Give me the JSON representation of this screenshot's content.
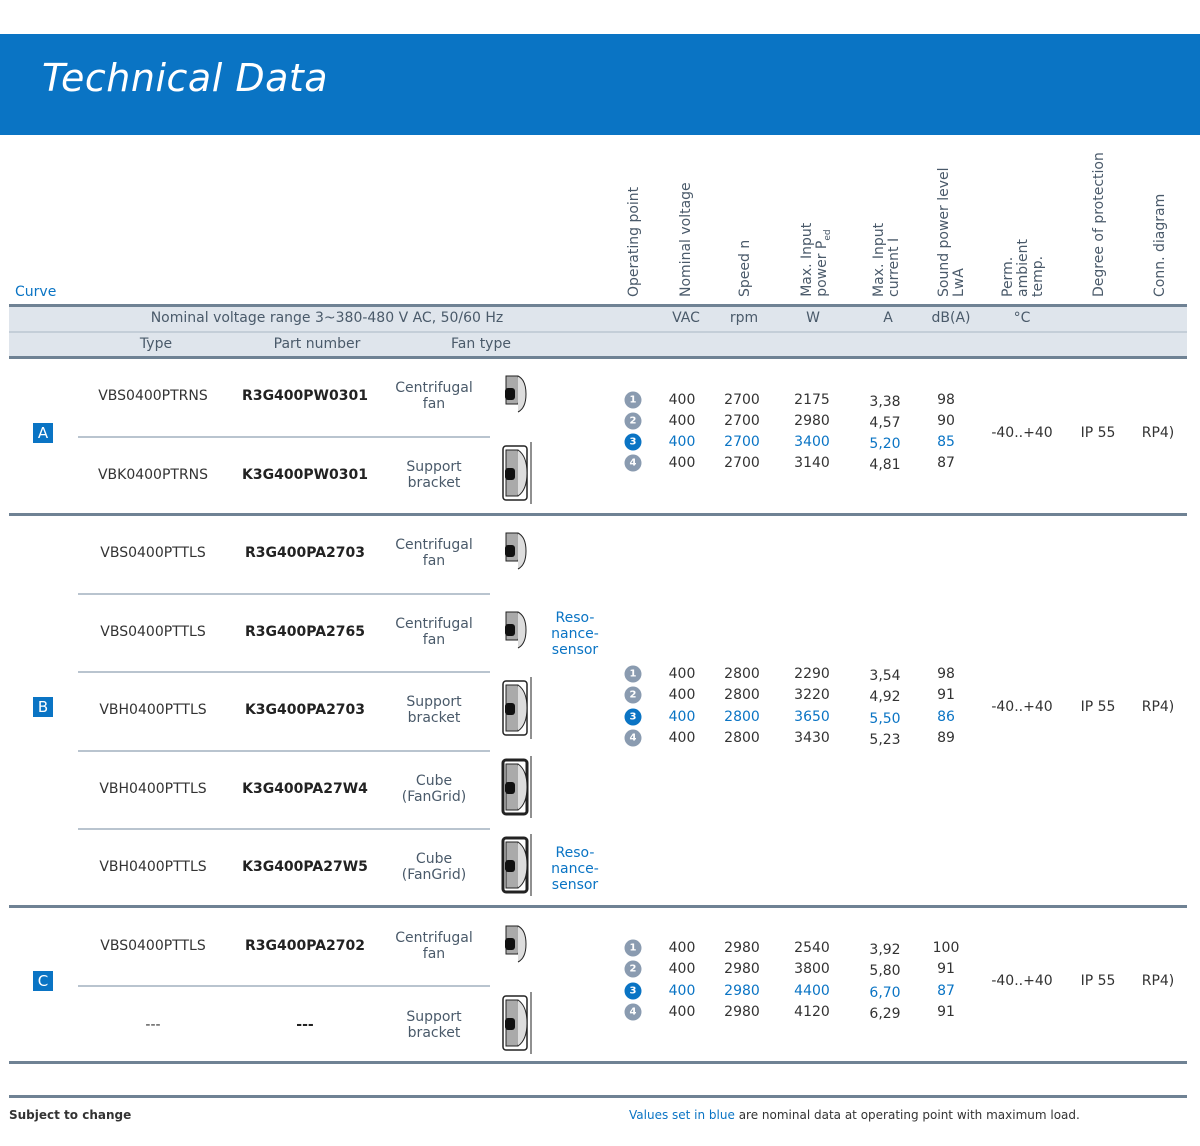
{
  "title": "Technical Data",
  "header": {
    "curve": "Curve",
    "rotated": [
      [
        "Operating point"
      ],
      [
        "Nominal voltage"
      ],
      [
        "Speed n"
      ],
      [
        "Max. Input",
        "power P_ed"
      ],
      [
        "Max. Input",
        "current I"
      ],
      [
        "Sound power level",
        "LwA"
      ],
      [
        "Perm.",
        "ambient",
        "temp."
      ],
      [
        "Degree of protection"
      ],
      [
        "Conn. diagram"
      ]
    ],
    "voltage_range": "Nominal voltage range 3~380-480 V AC, 50/60 Hz",
    "units": [
      "VAC",
      "rpm",
      "W",
      "A",
      "dB(A)",
      "°C"
    ],
    "type": "Type",
    "part_number": "Part number",
    "fan_type": "Fan type"
  },
  "sections": [
    {
      "label": "A",
      "rows": [
        {
          "type": "VBS0400PTRNS",
          "part": "R3G400PW0301",
          "fan": "Centrifugal fan",
          "icon": "fan",
          "resonance": ""
        },
        {
          "type": "VBK0400PTRNS",
          "part": "K3G400PW0301",
          "fan": "Support bracket",
          "icon": "bracket",
          "resonance": ""
        }
      ],
      "points": [
        [
          "1",
          "400",
          "2700",
          "2175",
          "3,38",
          "98"
        ],
        [
          "2",
          "400",
          "2700",
          "2980",
          "4,57",
          "90"
        ],
        [
          "3",
          "400",
          "2700",
          "3400",
          "5,20",
          "85"
        ],
        [
          "4",
          "400",
          "2700",
          "3140",
          "4,81",
          "87"
        ]
      ],
      "temp": "-40..+40",
      "ip": "IP 55",
      "conn": "RP4)"
    },
    {
      "label": "B",
      "rows": [
        {
          "type": "VBS0400PTTLS",
          "part": "R3G400PA2703",
          "fan": "Centrifugal fan",
          "icon": "fan",
          "resonance": ""
        },
        {
          "type": "VBS0400PTTLS",
          "part": "R3G400PA2765",
          "fan": "Centrifugal fan",
          "icon": "fan",
          "resonance": "Reso- nance- sensor"
        },
        {
          "type": "VBH0400PTTLS",
          "part": "K3G400PA2703",
          "fan": "Support bracket",
          "icon": "bracket",
          "resonance": ""
        },
        {
          "type": "VBH0400PTTLS",
          "part": "K3G400PA27W4",
          "fan": "Cube (FanGrid)",
          "icon": "cube",
          "resonance": ""
        },
        {
          "type": "VBH0400PTTLS",
          "part": "K3G400PA27W5",
          "fan": "Cube (FanGrid)",
          "icon": "cube",
          "resonance": "Reso- nance- sensor"
        }
      ],
      "points": [
        [
          "1",
          "400",
          "2800",
          "2290",
          "3,54",
          "98"
        ],
        [
          "2",
          "400",
          "2800",
          "3220",
          "4,92",
          "91"
        ],
        [
          "3",
          "400",
          "2800",
          "3650",
          "5,50",
          "86"
        ],
        [
          "4",
          "400",
          "2800",
          "3430",
          "5,23",
          "89"
        ]
      ],
      "temp": "-40..+40",
      "ip": "IP 55",
      "conn": "RP4)"
    },
    {
      "label": "C",
      "rows": [
        {
          "type": "VBS0400PTTLS",
          "part": "R3G400PA2702",
          "fan": "Centrifugal fan",
          "icon": "fan",
          "resonance": ""
        },
        {
          "type": "---",
          "part": "---",
          "fan": "Support bracket",
          "icon": "bracket",
          "resonance": ""
        }
      ],
      "points": [
        [
          "1",
          "400",
          "2980",
          "2540",
          "3,92",
          "100"
        ],
        [
          "2",
          "400",
          "2980",
          "3800",
          "5,80",
          "91"
        ],
        [
          "3",
          "400",
          "2980",
          "4400",
          "6,70",
          "87"
        ],
        [
          "4",
          "400",
          "2980",
          "4120",
          "6,29",
          "91"
        ]
      ],
      "temp": "-40..+40",
      "ip": "IP 55",
      "conn": "RP4)"
    }
  ],
  "footer": {
    "left": "Subject to change",
    "blue": "Values set in blue",
    "rest": " are nominal data at operating point with maximum load."
  },
  "colors": {
    "brand": "#0a74c4",
    "bar": "#dfe5ec",
    "rule": "#6f8294"
  }
}
